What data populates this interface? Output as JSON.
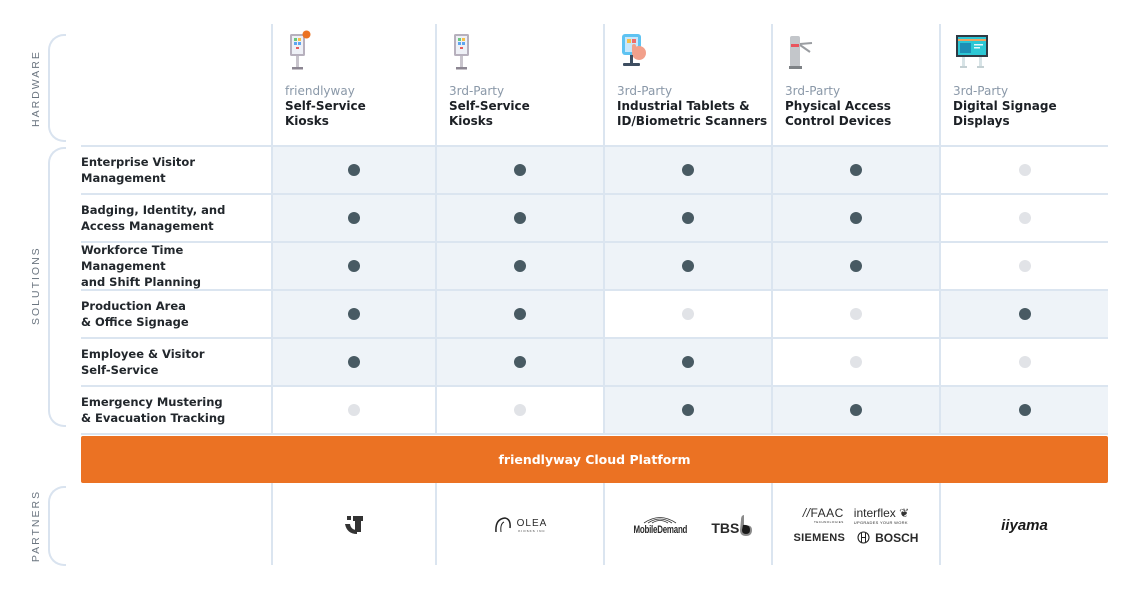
{
  "sections": {
    "hardware": "HARDWARE",
    "solutions": "SOLUTIONS",
    "partners": "PARTNERS"
  },
  "hardware": [
    {
      "brand": "friendlyway",
      "name_line1": "Self-Service",
      "name_line2": "Kiosks",
      "icon": "kiosk-icon-friendlyway"
    },
    {
      "brand": "3rd-Party",
      "name_line1": "Self-Service",
      "name_line2": "Kiosks",
      "icon": "kiosk-icon"
    },
    {
      "brand": "3rd-Party",
      "name_line1": "Industrial Tablets &",
      "name_line2": "ID/Biometric Scanners",
      "icon": "tablet-touch-icon"
    },
    {
      "brand": "3rd-Party",
      "name_line1": "Physical Access",
      "name_line2": "Control Devices",
      "icon": "turnstile-icon"
    },
    {
      "brand": "3rd-Party",
      "name_line1": "Digital Signage",
      "name_line2": "Displays",
      "icon": "signage-display-icon"
    }
  ],
  "solutions": [
    {
      "line1": "Enterprise Visitor",
      "line2": "Management",
      "support": [
        true,
        true,
        true,
        true,
        false
      ]
    },
    {
      "line1": "Badging, Identity, and",
      "line2": "Access Management",
      "support": [
        true,
        true,
        true,
        true,
        false
      ]
    },
    {
      "line1": "Workforce Time Management",
      "line2": "and Shift Planning",
      "support": [
        true,
        true,
        true,
        true,
        false
      ]
    },
    {
      "line1": "Production Area",
      "line2": "& Office Signage",
      "support": [
        true,
        true,
        false,
        false,
        true
      ]
    },
    {
      "line1": "Employee & Visitor",
      "line2": "Self-Service",
      "support": [
        true,
        true,
        true,
        false,
        false
      ]
    },
    {
      "line1": "Emergency Mustering",
      "line2": "& Evacuation Tracking",
      "support": [
        false,
        false,
        true,
        true,
        true
      ]
    }
  ],
  "platform": {
    "label": "friendlyway Cloud Platform",
    "color": "#eb7223"
  },
  "partners": [
    {
      "logos": [
        "friendlyway-logo"
      ]
    },
    {
      "logos": [
        "OLEA"
      ]
    },
    {
      "logos": [
        "MobileDemand",
        "TBS"
      ]
    },
    {
      "logos": [
        "FAAC",
        "interflex",
        "SIEMENS",
        "BOSCH"
      ]
    },
    {
      "logos": [
        "iiyama"
      ]
    }
  ],
  "partner_text": {
    "olea": "OLEA",
    "olea_sub": "KIOSKS INC",
    "mobiledemand": "MobileDemand",
    "tbs": "TBS",
    "faac": "FAAC",
    "faac_sub": "TECHNOLOGIES",
    "interflex": "interflex",
    "interflex_sub": "UPGRADES YOUR WORK",
    "siemens": "SIEMENS",
    "bosch": "BOSCH",
    "iiyama": "iiyama"
  },
  "colors": {
    "dot_on": "#485a63",
    "dot_off": "#e1e3e7",
    "cell_on": "#eef3f8",
    "grid": "#dbe5f0",
    "brand_muted": "#8a98a8"
  }
}
